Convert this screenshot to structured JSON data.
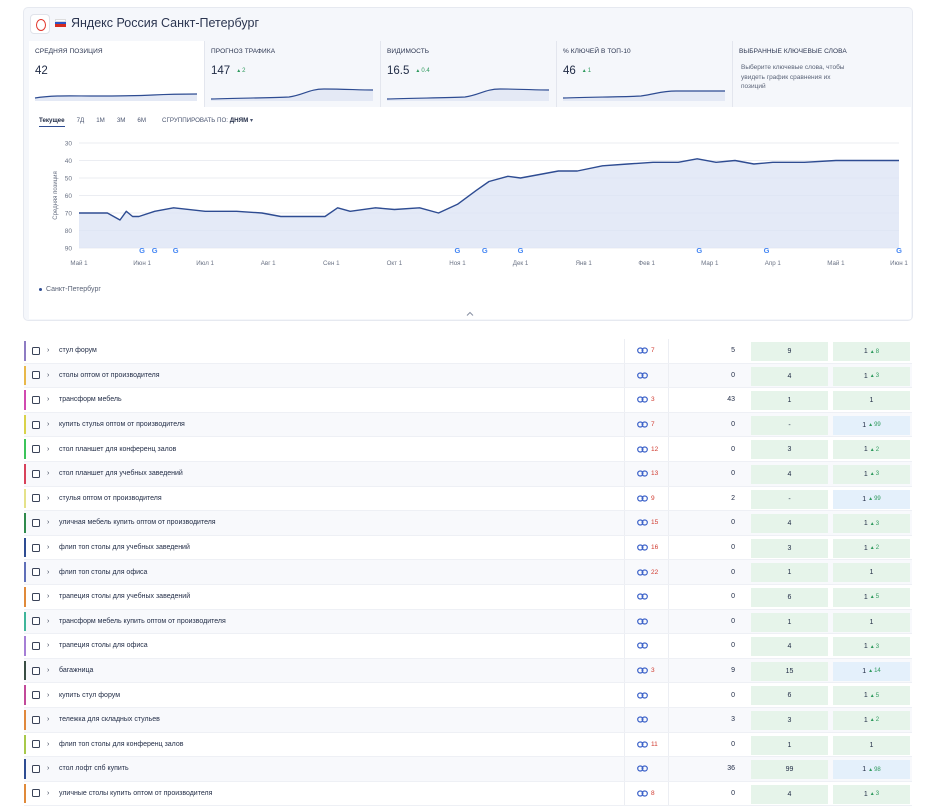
{
  "header": {
    "title": "Яндекс Россия Санкт-Петербург"
  },
  "metrics": [
    {
      "label": "Средняя позиция",
      "value": "42",
      "delta": ""
    },
    {
      "label": "Прогноз трафика",
      "value": "147",
      "delta": "2"
    },
    {
      "label": "Видимость",
      "value": "16.5",
      "delta": "0.4"
    },
    {
      "label": "% ключей в топ-10",
      "value": "46",
      "delta": "1"
    }
  ],
  "selected_keywords": {
    "label": "Выбранные ключевые слова",
    "hint": "Выберите ключевые слова, чтобы увидеть график сравнения их позиций"
  },
  "tabs": [
    "Текущее",
    "7Д",
    "1М",
    "3М",
    "6М"
  ],
  "groupby": {
    "label": "СГРУППИРОВАТЬ ПО:",
    "value": "ДНЯМ"
  },
  "chart_data": {
    "type": "line",
    "ylabel": "Средняя позиция",
    "yticks": [
      30,
      40,
      50,
      60,
      70,
      80,
      90
    ],
    "ylim": [
      90,
      30
    ],
    "inverted_y": true,
    "xticks": [
      "Май 1",
      "Июн 1",
      "Июл 1",
      "Авг 1",
      "Сен 1",
      "Окт 1",
      "Ноя 1",
      "Дек 1",
      "Янв 1",
      "Фев 1",
      "Мар 1",
      "Апр 1",
      "Май 1",
      "Июн 1"
    ],
    "series": [
      {
        "name": "Санкт-Петербург",
        "x": [
          0.0,
          0.45,
          0.65,
          0.75,
          0.85,
          0.95,
          1.2,
          1.5,
          2.0,
          2.5,
          2.9,
          3.2,
          3.5,
          3.9,
          4.1,
          4.3,
          4.7,
          5.0,
          5.4,
          5.7,
          6.0,
          6.3,
          6.5,
          6.8,
          7.0,
          7.3,
          7.6,
          7.9,
          8.3,
          8.7,
          9.1,
          9.5,
          9.8,
          10.1,
          10.4,
          10.7,
          11.0,
          11.5,
          12.0,
          12.5,
          13.0
        ],
        "values": [
          70,
          70,
          74,
          69,
          72,
          72,
          69,
          67,
          69,
          69,
          70,
          72,
          72,
          72,
          67,
          69,
          67,
          68,
          67,
          70,
          65,
          57,
          52,
          49,
          50,
          48,
          46,
          46,
          43,
          42,
          41,
          41,
          39,
          41,
          40,
          42,
          41,
          41,
          40,
          40,
          40
        ]
      }
    ],
    "google_update_markers": [
      "Июн 1",
      "Июн 7",
      "Июн 17",
      "Ноя 1",
      "Ноя 14",
      "Дек 1",
      "Фев 26",
      "Мар 28",
      "Июн 1"
    ],
    "legend": "Санкт-Петербург",
    "colors": {
      "line": "#2e4c92",
      "fill": "#dbe3f4"
    },
    "grid": true
  },
  "keywords": [
    {
      "kw": "стул форум",
      "links": "7",
      "freq": "5",
      "prev": "9",
      "cur": "1",
      "up": "8",
      "color": "#8e7cc3",
      "cur_bg": "green"
    },
    {
      "kw": "столы оптом от производителя",
      "links": "",
      "freq": "0",
      "prev": "4",
      "cur": "1",
      "up": "3",
      "color": "#e8b84a",
      "cur_bg": "green"
    },
    {
      "kw": "трансформ мебель",
      "links": "3",
      "freq": "43",
      "prev": "1",
      "cur": "1",
      "up": "",
      "color": "#d14ab0",
      "cur_bg": "green"
    },
    {
      "kw": "купить стулья оптом от производителя",
      "links": "7",
      "freq": "0",
      "prev": "-",
      "cur": "1",
      "up": "99",
      "color": "#d9d24a",
      "cur_bg": "blue"
    },
    {
      "kw": "стол планшет для конференц залов",
      "links": "12",
      "freq": "0",
      "prev": "3",
      "cur": "1",
      "up": "2",
      "color": "#3cc45a",
      "cur_bg": "green"
    },
    {
      "kw": "стол планшет для учебных заведений",
      "links": "13",
      "freq": "0",
      "prev": "4",
      "cur": "1",
      "up": "3",
      "color": "#d8425a",
      "cur_bg": "green"
    },
    {
      "kw": "стулья оптом от производителя",
      "links": "9",
      "freq": "2",
      "prev": "-",
      "cur": "1",
      "up": "99",
      "color": "#e5e28a",
      "cur_bg": "blue"
    },
    {
      "kw": "уличная мебель купить оптом от производителя",
      "links": "15",
      "freq": "0",
      "prev": "4",
      "cur": "1",
      "up": "3",
      "color": "#2f8a4c",
      "cur_bg": "green"
    },
    {
      "kw": "флип топ столы для учебных заведений",
      "links": "16",
      "freq": "0",
      "prev": "3",
      "cur": "1",
      "up": "2",
      "color": "#2e4c92",
      "cur_bg": "green"
    },
    {
      "kw": "флип топ столы для офиса",
      "links": "22",
      "freq": "0",
      "prev": "1",
      "cur": "1",
      "up": "",
      "color": "#5f6fb8",
      "cur_bg": "green"
    },
    {
      "kw": "трапеция столы для учебных заведений",
      "links": "",
      "freq": "0",
      "prev": "6",
      "cur": "1",
      "up": "5",
      "color": "#e08a3a",
      "cur_bg": "green"
    },
    {
      "kw": "трансформ мебель купить оптом от производителя",
      "links": "",
      "freq": "0",
      "prev": "1",
      "cur": "1",
      "up": "",
      "color": "#3fb59a",
      "cur_bg": "green"
    },
    {
      "kw": "трапеция столы для офиса",
      "links": "",
      "freq": "0",
      "prev": "4",
      "cur": "1",
      "up": "3",
      "color": "#a67fd6",
      "cur_bg": "green"
    },
    {
      "kw": "багажница",
      "links": "3",
      "freq": "9",
      "prev": "15",
      "cur": "1",
      "up": "14",
      "color": "#3a4d44",
      "cur_bg": "blue"
    },
    {
      "kw": "купить стул форум",
      "links": "",
      "freq": "0",
      "prev": "6",
      "cur": "1",
      "up": "5",
      "color": "#c24a9a",
      "cur_bg": "green"
    },
    {
      "kw": "тележка для складных стульев",
      "links": "",
      "freq": "3",
      "prev": "3",
      "cur": "1",
      "up": "2",
      "color": "#e0883c",
      "cur_bg": "green"
    },
    {
      "kw": "флип топ столы для конференц залов",
      "links": "11",
      "freq": "0",
      "prev": "1",
      "cur": "1",
      "up": "",
      "color": "#a8c94a",
      "cur_bg": "green"
    },
    {
      "kw": "стол лофт спб купить",
      "links": "",
      "freq": "36",
      "prev": "99",
      "cur": "1",
      "up": "98",
      "color": "#2e4c92",
      "cur_bg": "blue"
    },
    {
      "kw": "уличные столы купить оптом от производителя",
      "links": "8",
      "freq": "0",
      "prev": "4",
      "cur": "1",
      "up": "3",
      "color": "#e08a3a",
      "cur_bg": "green"
    }
  ]
}
